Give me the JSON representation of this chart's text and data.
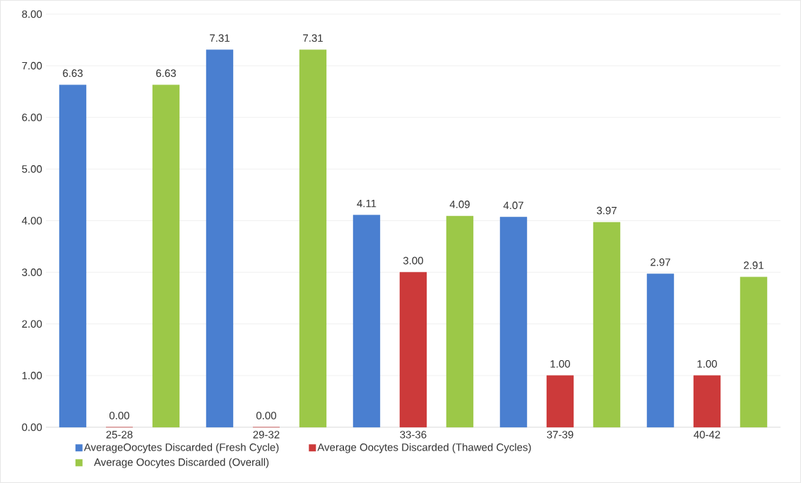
{
  "chart_data": {
    "type": "bar",
    "categories": [
      "25-28",
      "29-32",
      "33-36",
      "37-39",
      "40-42"
    ],
    "series": [
      {
        "name": "AverageOocytes Discarded (Fresh Cycle)",
        "color": "#4a7fd0",
        "values": [
          6.63,
          7.31,
          4.11,
          4.07,
          2.97
        ],
        "value_labels": [
          "6.63",
          "7.31",
          "4.11",
          "4.07",
          "2.97"
        ]
      },
      {
        "name": "Average Oocytes Discarded (Thawed Cycles)",
        "color": "#cc3a3a",
        "values": [
          0,
          0,
          3.0,
          1.0,
          1.0
        ],
        "value_labels": [
          "0.00",
          "0.00",
          "3.00",
          "1.00",
          "1.00"
        ]
      },
      {
        "name": "Average Oocytes Discarded (Overall)",
        "color": "#9cc848",
        "values": [
          6.63,
          7.31,
          4.09,
          3.97,
          2.91
        ],
        "value_labels": [
          "6.63",
          "7.31",
          "4.09",
          "3.97",
          "2.91"
        ]
      }
    ],
    "ylim": [
      0,
      8
    ],
    "yticks": [
      {
        "value": 0,
        "label": "0.00"
      },
      {
        "value": 1,
        "label": "1.00"
      },
      {
        "value": 2,
        "label": "2.00"
      },
      {
        "value": 3,
        "label": "3.00"
      },
      {
        "value": 4,
        "label": "4.00"
      },
      {
        "value": 5,
        "label": "5.00"
      },
      {
        "value": 6,
        "label": "6.00"
      },
      {
        "value": 7,
        "label": "7.00"
      },
      {
        "value": 8,
        "label": "8.00"
      }
    ],
    "grid": "y",
    "legend": "bottom"
  }
}
